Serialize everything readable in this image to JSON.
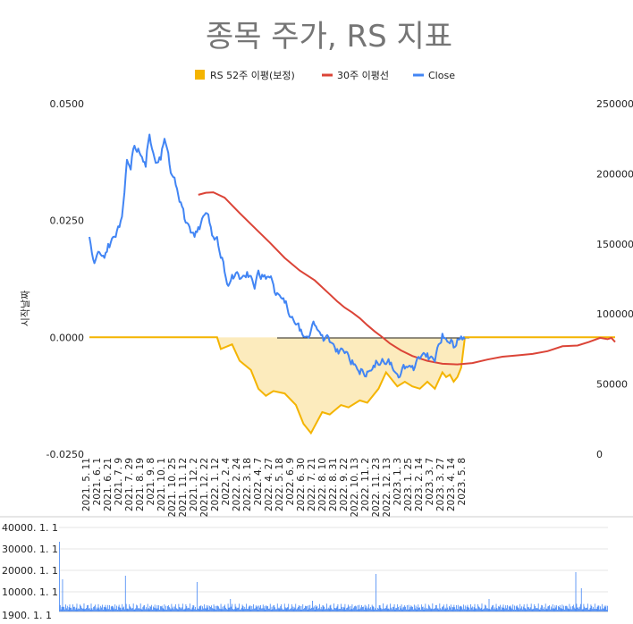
{
  "chart_data": [
    {
      "type": "line",
      "title": "종목 주가, RS 지표",
      "ylabel": "시작날짜",
      "legend_position": "top",
      "left_axis": {
        "ylim": [
          -0.025,
          0.05
        ],
        "ticks": [
          "0.0500",
          "0.0250",
          "0.0000",
          "-0.0250"
        ]
      },
      "right_axis": {
        "ylim": [
          0,
          250000
        ],
        "ticks": [
          "250000",
          "200000",
          "150000",
          "100000",
          "50000",
          "0"
        ]
      },
      "x_ticks": [
        "2021. 5. 11",
        "2021. 6. 1",
        "2021. 6. 21",
        "2021. 7. 9",
        "2021. 7. 29",
        "2021. 8. 19",
        "2021. 9. 8",
        "2021. 10. 1",
        "2021. 10. 25",
        "2021. 11. 12",
        "2021. 12. 2",
        "2021. 12. 22",
        "2022. 1. 12",
        "2022. 2. 4",
        "2022. 2. 24",
        "2022. 3. 18",
        "2022. 4. 7",
        "2022. 4. 27",
        "2022. 5. 18",
        "2022. 6. 9",
        "2022. 6. 30",
        "2022. 7. 21",
        "2022. 8. 10",
        "2022. 8. 31",
        "2022. 9. 22",
        "2022. 10. 13",
        "2022. 11. 2",
        "2022. 11. 23",
        "2022. 12. 13",
        "2023. 1. 3",
        "2023. 1. 25",
        "2023. 2. 14",
        "2023. 3. 7",
        "2023. 3. 27",
        "2023. 4. 14",
        "2023. 5. 8"
      ],
      "series": [
        {
          "name": "RS 52주 이평(보정)",
          "color": "#f4b400",
          "axis": "left",
          "x_index": [
            0,
            34,
            35,
            38,
            40,
            43,
            45,
            47,
            49,
            52,
            55,
            57,
            59,
            62,
            64,
            67,
            69,
            72,
            74,
            77,
            79,
            82,
            84,
            86,
            88,
            90,
            92,
            94,
            95,
            96,
            97,
            98,
            99,
            100
          ],
          "values": [
            0.0,
            0.0,
            -0.0025,
            -0.0015,
            -0.005,
            -0.007,
            -0.011,
            -0.0125,
            -0.0115,
            -0.012,
            -0.0145,
            -0.0185,
            -0.0205,
            -0.016,
            -0.0165,
            -0.0145,
            -0.015,
            -0.0135,
            -0.014,
            -0.011,
            -0.0075,
            -0.0105,
            -0.0095,
            -0.0105,
            -0.011,
            -0.0095,
            -0.011,
            -0.0075,
            -0.0085,
            -0.008,
            -0.0095,
            -0.0085,
            -0.0065,
            0.0
          ]
        },
        {
          "name": "30주 이평선",
          "color": "#db4437",
          "axis": "right",
          "x_index": [
            29,
            31,
            33,
            36,
            40,
            44,
            48,
            52,
            56,
            60,
            64,
            66,
            68,
            70,
            72,
            74,
            76,
            78,
            80,
            83,
            86,
            90,
            94,
            98,
            102,
            106,
            110,
            114,
            118,
            122,
            126,
            130,
            133,
            136,
            138,
            139,
            140
          ],
          "values": [
            185000,
            186500,
            186800,
            183000,
            172000,
            161500,
            151000,
            140000,
            131000,
            124000,
            114000,
            109000,
            104500,
            101000,
            97000,
            92000,
            87500,
            83500,
            79000,
            74000,
            70000,
            66500,
            64500,
            64000,
            65000,
            67500,
            69500,
            70500,
            71500,
            73500,
            77000,
            77500,
            80000,
            83000,
            82000,
            83000,
            80000
          ]
        },
        {
          "name": "Close",
          "color": "#4285f4",
          "axis": "right",
          "x_index": [
            0,
            1,
            2,
            4,
            5,
            7,
            8,
            9,
            10,
            11,
            12,
            13,
            14,
            15,
            16,
            17,
            18,
            19,
            20,
            21,
            22,
            23,
            24,
            25,
            26,
            27,
            28,
            29,
            30,
            31,
            32,
            33,
            34,
            35,
            36,
            37,
            38,
            40,
            42,
            44,
            45,
            46,
            47,
            48,
            49,
            50,
            52,
            54,
            56,
            58,
            60,
            62,
            64,
            66,
            68,
            70,
            72,
            74,
            76,
            78,
            80,
            82,
            84,
            86,
            88,
            90,
            92,
            94,
            95,
            96,
            97,
            98,
            99,
            100
          ],
          "values": [
            155000,
            139000,
            142000,
            140000,
            150000,
            155000,
            162000,
            178000,
            210000,
            203000,
            220000,
            218000,
            212000,
            205000,
            228000,
            215000,
            208000,
            210000,
            225000,
            215000,
            199000,
            192000,
            180000,
            175000,
            165000,
            158000,
            155000,
            162000,
            168000,
            172000,
            165000,
            155000,
            155000,
            140000,
            130000,
            120000,
            128000,
            125000,
            130000,
            118000,
            131000,
            128000,
            125000,
            126000,
            121000,
            115000,
            108000,
            98000,
            88000,
            84000,
            92000,
            85000,
            80000,
            75000,
            72000,
            67000,
            57000,
            59000,
            62000,
            68000,
            64000,
            57000,
            61000,
            63000,
            68000,
            72000,
            66000,
            86000,
            82000,
            79000,
            76000,
            82000,
            84000,
            82000
          ]
        }
      ]
    },
    {
      "type": "bar",
      "y_ticks": [
        "40000. 1. 1",
        "30000. 1. 1",
        "20000. 1. 1",
        "10000. 1. 1",
        "1900. 1. 1"
      ],
      "color": "#4285f4"
    }
  ]
}
